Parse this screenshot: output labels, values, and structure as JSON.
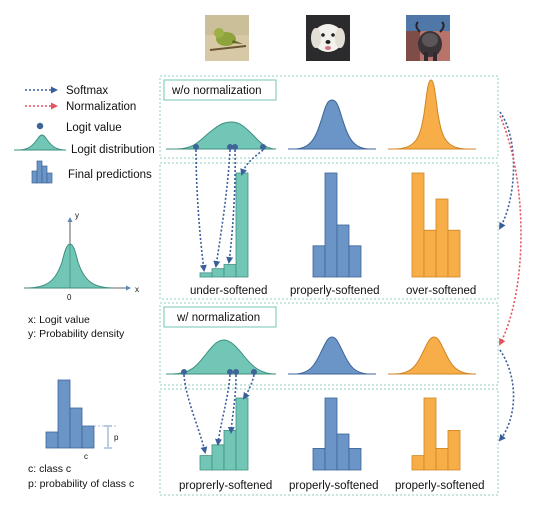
{
  "colors": {
    "teal": "#72c6b5",
    "teal_stroke": "#3f8f80",
    "blue": "#6b95c7",
    "blue_stroke": "#3d6597",
    "orange": "#f7ae49",
    "orange_stroke": "#cf8424",
    "panel_border": "#8fcfc2",
    "softmax_arrow": "#3a5e9c",
    "normalization_arrow": "#e05560"
  },
  "images": [
    {
      "name": "bird-photo"
    },
    {
      "name": "dog-photo"
    },
    {
      "name": "goat-photo"
    }
  ],
  "legend": {
    "softmax": "Softmax",
    "normalization": "Normalization",
    "logit_value": "Logit value",
    "logit_distribution": "Logit distribution",
    "final_predictions": "Final predictions"
  },
  "axes_example": {
    "y_label": "y",
    "x_label": "x",
    "origin": "0",
    "x_desc": "x: Logit value",
    "y_desc": "y: Probability density"
  },
  "bar_example": {
    "c_label": "c",
    "p_label": "p",
    "c_desc": "c: class c",
    "p_desc": "p: probability of class c"
  },
  "panels": {
    "without_norm": "w/o normalization",
    "with_norm": "w/ normalization"
  },
  "rows": {
    "top_labels": [
      "under-softened",
      "properly-softened",
      "over-softened"
    ],
    "bottom_labels": [
      "proprerly-softened",
      "properly-softened",
      "properly-softened"
    ],
    "top_bars": [
      [
        0.04,
        0.08,
        0.12,
        1.0
      ],
      [
        0.3,
        1.0,
        0.5,
        0.3
      ],
      [
        1.0,
        0.45,
        0.75,
        0.45
      ]
    ],
    "bottom_bars": [
      [
        0.2,
        0.35,
        0.55,
        1.0
      ],
      [
        0.3,
        1.0,
        0.5,
        0.3
      ],
      [
        0.2,
        1.0,
        0.3,
        0.55
      ]
    ]
  }
}
